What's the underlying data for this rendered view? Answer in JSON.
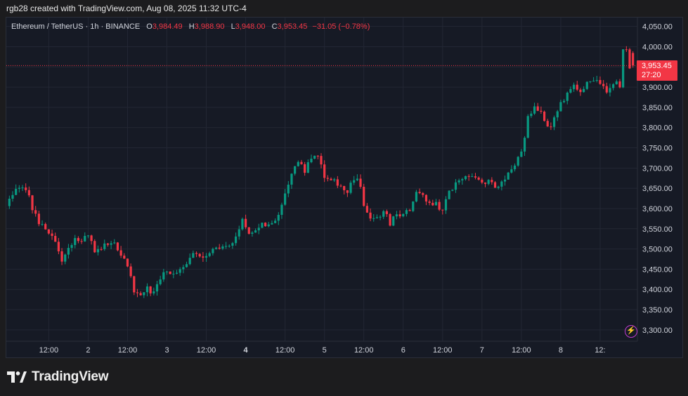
{
  "header": {
    "attribution": "rgb28 created with TradingView.com, Aug 08, 2025 11:32 UTC-4"
  },
  "legend": {
    "symbol": "Ethereum / TetherUS · 1h · BINANCE",
    "open_label": "O",
    "open": "3,984.49",
    "high_label": "H",
    "high": "3,988.90",
    "low_label": "L",
    "low": "3,948.00",
    "close_label": "C",
    "close": "3,953.45",
    "change": "−31.05 (−0.78%)"
  },
  "price_tag": {
    "price": "3,953.45",
    "countdown": "27:20"
  },
  "brand": {
    "name": "TradingView"
  },
  "colors": {
    "up": "#089981",
    "down": "#f23645",
    "background": "#161a25",
    "grid": "#232734"
  },
  "chart_data": {
    "type": "candlestick",
    "y_ticks": [
      4050,
      4000,
      3950,
      3900,
      3850,
      3800,
      3750,
      3700,
      3650,
      3600,
      3550,
      3500,
      3450,
      3400,
      3350,
      3300
    ],
    "y_tick_labels": [
      "4,050.00",
      "4,000.00",
      "3,950.00",
      "3,900.00",
      "3,850.00",
      "3,800.00",
      "3,750.00",
      "3,700.00",
      "3,650.00",
      "3,600.00",
      "3,550.00",
      "3,500.00",
      "3,450.00",
      "3,400.00",
      "3,350.00",
      "3,300.00"
    ],
    "ylim": [
      3272,
      4072
    ],
    "x_tick_labels": [
      "12:00",
      "2",
      "12:00",
      "3",
      "12:00",
      "4",
      "12:00",
      "5",
      "12:00",
      "6",
      "12:00",
      "7",
      "12:00",
      "8",
      "12:"
    ],
    "x_tick_hours": [
      12,
      24,
      36,
      48,
      60,
      72,
      84,
      96,
      108,
      120,
      132,
      144,
      156,
      168,
      180
    ],
    "last_price": 3953.45,
    "path_anchors": [
      [
        0,
        3610
      ],
      [
        2,
        3625
      ],
      [
        4,
        3655
      ],
      [
        6,
        3650
      ],
      [
        8,
        3600
      ],
      [
        10,
        3570
      ],
      [
        13,
        3545
      ],
      [
        15,
        3510
      ],
      [
        17,
        3470
      ],
      [
        18,
        3490
      ],
      [
        20,
        3515
      ],
      [
        23,
        3525
      ],
      [
        25,
        3530
      ],
      [
        27,
        3495
      ],
      [
        29,
        3505
      ],
      [
        31,
        3510
      ],
      [
        33,
        3515
      ],
      [
        35,
        3490
      ],
      [
        37,
        3450
      ],
      [
        39,
        3400
      ],
      [
        41,
        3390
      ],
      [
        43,
        3405
      ],
      [
        45,
        3390
      ],
      [
        47,
        3430
      ],
      [
        49,
        3440
      ],
      [
        52,
        3445
      ],
      [
        54,
        3460
      ],
      [
        56,
        3480
      ],
      [
        59,
        3490
      ],
      [
        61,
        3485
      ],
      [
        64,
        3495
      ],
      [
        66,
        3500
      ],
      [
        69,
        3515
      ],
      [
        70,
        3535
      ],
      [
        72,
        3570
      ],
      [
        73,
        3550
      ],
      [
        75,
        3540
      ],
      [
        77,
        3555
      ],
      [
        79,
        3560
      ],
      [
        81,
        3555
      ],
      [
        83,
        3580
      ],
      [
        85,
        3640
      ],
      [
        87,
        3690
      ],
      [
        89,
        3710
      ],
      [
        91,
        3695
      ],
      [
        93,
        3730
      ],
      [
        95,
        3725
      ],
      [
        97,
        3680
      ],
      [
        99,
        3665
      ],
      [
        102,
        3660
      ],
      [
        104,
        3640
      ],
      [
        106,
        3670
      ],
      [
        108,
        3660
      ],
      [
        109,
        3610
      ],
      [
        111,
        3575
      ],
      [
        113,
        3580
      ],
      [
        115,
        3590
      ],
      [
        117,
        3565
      ],
      [
        119,
        3580
      ],
      [
        121,
        3595
      ],
      [
        123,
        3585
      ],
      [
        125,
        3635
      ],
      [
        127,
        3630
      ],
      [
        129,
        3620
      ],
      [
        131,
        3610
      ],
      [
        133,
        3590
      ],
      [
        135,
        3640
      ],
      [
        137,
        3660
      ],
      [
        139,
        3680
      ],
      [
        141,
        3680
      ],
      [
        143,
        3685
      ],
      [
        145,
        3670
      ],
      [
        147,
        3665
      ],
      [
        149,
        3650
      ],
      [
        151,
        3665
      ],
      [
        153,
        3685
      ],
      [
        155,
        3710
      ],
      [
        157,
        3740
      ],
      [
        158,
        3770
      ],
      [
        159,
        3830
      ],
      [
        161,
        3850
      ],
      [
        163,
        3845
      ],
      [
        165,
        3800
      ],
      [
        167,
        3820
      ],
      [
        169,
        3860
      ],
      [
        171,
        3890
      ],
      [
        173,
        3910
      ],
      [
        175,
        3895
      ],
      [
        177,
        3905
      ],
      [
        179,
        3915
      ],
      [
        181,
        3905
      ],
      [
        183,
        3895
      ],
      [
        185,
        3915
      ],
      [
        187,
        3900
      ],
      [
        188,
        3985
      ],
      [
        189,
        3985
      ],
      [
        190,
        3953.45
      ]
    ]
  }
}
